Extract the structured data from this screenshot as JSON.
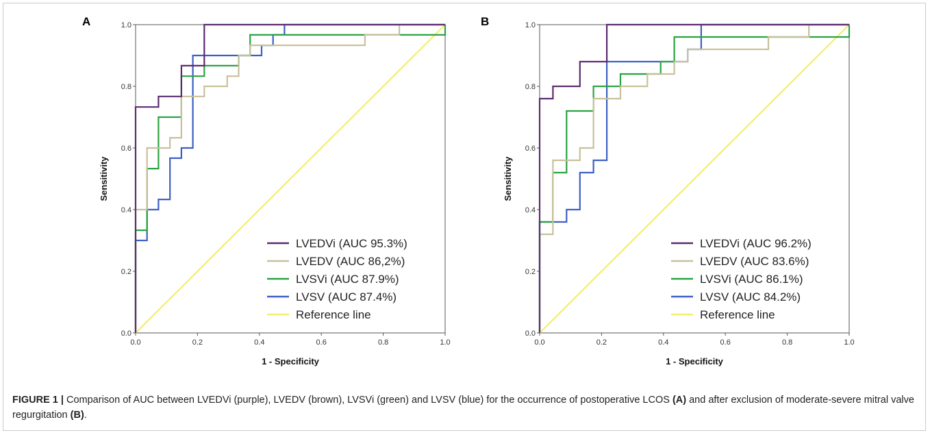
{
  "chart_data": [
    {
      "type": "line",
      "panel_label": "A",
      "xlabel": "1 - Specificity",
      "ylabel": "Sensitivity",
      "xlim": [
        0,
        1
      ],
      "ylim": [
        0,
        1
      ],
      "ticks": [
        "0.0",
        "0.2",
        "0.4",
        "0.6",
        "0.8",
        "1.0"
      ],
      "legend_position": "bottom-right",
      "series": [
        {
          "name": "LVEDVi (AUC 95.3%)",
          "color": "#5b2a6e",
          "x": [
            0,
            0,
            0.074,
            0.074,
            0.148,
            0.148,
            0.222,
            0.222,
            1
          ],
          "y": [
            0,
            0.733,
            0.733,
            0.767,
            0.767,
            0.867,
            0.867,
            1,
            1
          ]
        },
        {
          "name": "LVEDV (AUC 86,2%)",
          "color": "#c8c09a",
          "x": [
            0,
            0,
            0.037,
            0.037,
            0.111,
            0.111,
            0.148,
            0.148,
            0.222,
            0.222,
            0.296,
            0.296,
            0.333,
            0.333,
            0.37,
            0.37,
            0.741,
            0.741,
            0.852,
            0.852,
            1
          ],
          "y": [
            0,
            0.4,
            0.4,
            0.6,
            0.6,
            0.633,
            0.633,
            0.767,
            0.767,
            0.8,
            0.8,
            0.833,
            0.833,
            0.9,
            0.9,
            0.933,
            0.933,
            0.967,
            0.967,
            1,
            1
          ]
        },
        {
          "name": "LVSVi (AUC 87.9%)",
          "color": "#2aa340",
          "x": [
            0,
            0,
            0.037,
            0.037,
            0.074,
            0.074,
            0.148,
            0.148,
            0.222,
            0.222,
            0.333,
            0.333,
            0.37,
            0.37,
            1,
            1
          ],
          "y": [
            0,
            0.333,
            0.333,
            0.533,
            0.533,
            0.7,
            0.7,
            0.833,
            0.833,
            0.867,
            0.867,
            0.9,
            0.9,
            0.967,
            0.967,
            1
          ]
        },
        {
          "name": "LVSV (AUC 87.4%)",
          "color": "#3d5fc4",
          "x": [
            0,
            0,
            0.037,
            0.037,
            0.074,
            0.074,
            0.111,
            0.111,
            0.148,
            0.148,
            0.185,
            0.185,
            0.37,
            0.37,
            0.407,
            0.407,
            0.444,
            0.444,
            0.481,
            0.481,
            1
          ],
          "y": [
            0,
            0.3,
            0.3,
            0.4,
            0.4,
            0.433,
            0.433,
            0.567,
            0.567,
            0.6,
            0.6,
            0.9,
            0.9,
            0.9,
            0.9,
            0.933,
            0.933,
            0.967,
            0.967,
            1,
            1
          ]
        },
        {
          "name": "Reference line",
          "color": "#f2ee6e",
          "x": [
            0,
            1
          ],
          "y": [
            0,
            1
          ]
        }
      ]
    },
    {
      "type": "line",
      "panel_label": "B",
      "xlabel": "1 - Specificity",
      "ylabel": "Sensitivity",
      "xlim": [
        0,
        1
      ],
      "ylim": [
        0,
        1
      ],
      "ticks": [
        "0.0",
        "0.2",
        "0.4",
        "0.6",
        "0.8",
        "1.0"
      ],
      "legend_position": "bottom-right",
      "series": [
        {
          "name": "LVEDVi (AUC 96.2%)",
          "color": "#5b2a6e",
          "x": [
            0,
            0,
            0.043,
            0.043,
            0.13,
            0.13,
            0.217,
            0.217,
            1
          ],
          "y": [
            0,
            0.76,
            0.76,
            0.8,
            0.8,
            0.88,
            0.88,
            1,
            1
          ]
        },
        {
          "name": "LVEDV (AUC 83.6%)",
          "color": "#c8c09a",
          "x": [
            0,
            0,
            0.043,
            0.043,
            0.13,
            0.13,
            0.174,
            0.174,
            0.261,
            0.261,
            0.348,
            0.348,
            0.435,
            0.435,
            0.478,
            0.478,
            0.739,
            0.739,
            0.87,
            0.87,
            1
          ],
          "y": [
            0,
            0.32,
            0.32,
            0.56,
            0.56,
            0.6,
            0.6,
            0.76,
            0.76,
            0.8,
            0.8,
            0.84,
            0.84,
            0.88,
            0.88,
            0.92,
            0.92,
            0.96,
            0.96,
            1,
            1
          ]
        },
        {
          "name": "LVSVi (AUC 86.1%)",
          "color": "#2aa340",
          "x": [
            0,
            0,
            0.043,
            0.043,
            0.087,
            0.087,
            0.174,
            0.174,
            0.261,
            0.261,
            0.391,
            0.391,
            0.435,
            0.435,
            1,
            1
          ],
          "y": [
            0,
            0.36,
            0.36,
            0.52,
            0.52,
            0.72,
            0.72,
            0.8,
            0.8,
            0.84,
            0.84,
            0.88,
            0.88,
            0.96,
            0.96,
            1
          ]
        },
        {
          "name": "LVSV (AUC 84.2%)",
          "color": "#3d5fc4",
          "x": [
            0,
            0,
            0.043,
            0.043,
            0.087,
            0.087,
            0.13,
            0.13,
            0.174,
            0.174,
            0.217,
            0.217,
            0.435,
            0.435,
            0.478,
            0.478,
            0.522,
            0.522,
            1
          ],
          "y": [
            0,
            0.36,
            0.36,
            0.36,
            0.36,
            0.4,
            0.4,
            0.52,
            0.52,
            0.56,
            0.56,
            0.88,
            0.88,
            0.88,
            0.88,
            0.92,
            0.92,
            1,
            1
          ]
        },
        {
          "name": "Reference line",
          "color": "#f2ee6e",
          "x": [
            0,
            1
          ],
          "y": [
            0,
            1
          ]
        }
      ]
    }
  ],
  "caption": {
    "figure_label": "FIGURE 1 |",
    "text_1": " Comparison of AUC between LVEDVi (purple), LVEDV (brown), LVSVi (green) and LVSV (blue) for the occurrence of postoperative LCOS ",
    "ref_a": "(A)",
    "text_2": " and after exclusion of moderate-severe mitral valve regurgitation ",
    "ref_b": "(B)",
    "text_3": "."
  }
}
